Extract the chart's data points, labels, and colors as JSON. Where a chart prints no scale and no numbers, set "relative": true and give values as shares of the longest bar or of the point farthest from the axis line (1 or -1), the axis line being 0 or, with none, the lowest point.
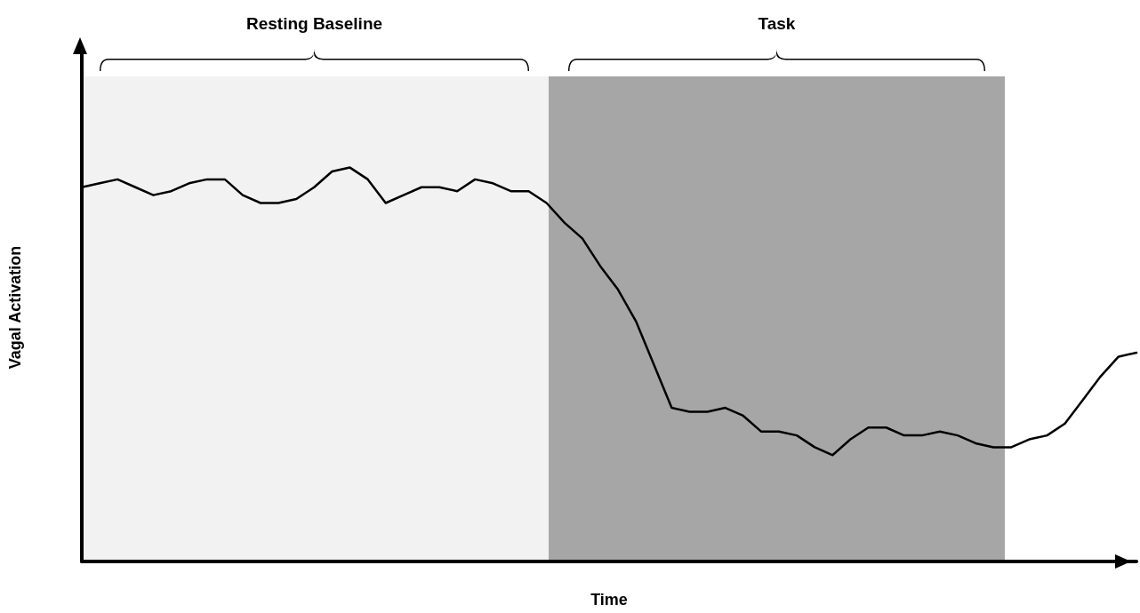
{
  "chart_data": {
    "type": "line",
    "relative": true,
    "xlabel": "Time",
    "ylabel": "Vagal Activation",
    "annotations": [
      "Resting Baseline",
      "Task"
    ],
    "grid": false,
    "marker": "none",
    "line_style": "solid",
    "categories": [
      null,
      null,
      null,
      null,
      null,
      null,
      null,
      null,
      null,
      null,
      null,
      null,
      null,
      null,
      null,
      null,
      null,
      null,
      null,
      null,
      null,
      null,
      null,
      null,
      null,
      null,
      null,
      null,
      null,
      null,
      null,
      null,
      null,
      null,
      null,
      null,
      null,
      null,
      null,
      null,
      null,
      null,
      null,
      null,
      null,
      null,
      null,
      null,
      null,
      null,
      null,
      null,
      null,
      null,
      null,
      null,
      null,
      null,
      null,
      null
    ],
    "series": [
      {
        "color": "#000000",
        "values": [
          0.95,
          0.96,
          0.97,
          0.95,
          0.93,
          0.94,
          0.96,
          0.97,
          0.97,
          0.93,
          0.91,
          0.91,
          0.92,
          0.95,
          0.99,
          1.0,
          0.97,
          0.91,
          0.93,
          0.95,
          0.95,
          0.94,
          0.97,
          0.96,
          0.94,
          0.94,
          0.91,
          0.86,
          0.82,
          0.75,
          0.69,
          0.61,
          0.5,
          0.39,
          0.38,
          0.38,
          0.39,
          0.37,
          0.33,
          0.33,
          0.32,
          0.29,
          0.27,
          0.31,
          0.34,
          0.34,
          0.32,
          0.32,
          0.33,
          0.32,
          0.3,
          0.29,
          0.29,
          0.31,
          0.32,
          0.35,
          0.41,
          0.47,
          0.52,
          0.53
        ]
      }
    ]
  }
}
